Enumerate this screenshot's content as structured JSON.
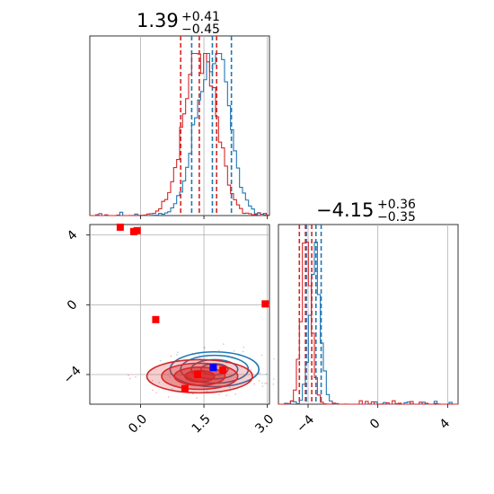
{
  "chart_data": {
    "type": "scatter",
    "kind": "corner plot",
    "grid": true,
    "colors": {
      "series_a": "#1f77b4",
      "series_b": "#d62728",
      "marker_red": "#ff0000",
      "marker_blue": "#0000ff"
    },
    "panels": {
      "hist_x": {
        "title": {
          "median": "1.39",
          "plus": "+0.41",
          "minus": "−0.45"
        },
        "xlim": [
          -1.2,
          3.05
        ],
        "ylim": [
          0,
          1
        ],
        "series": [
          {
            "color": "#1f77b4",
            "lines": [
              1.21,
              1.7,
              2.15
            ],
            "peak": 1.7,
            "sigma": 0.38
          },
          {
            "color": "#d62728",
            "lines": [
              0.95,
              1.39,
              1.8
            ],
            "peak": 1.4,
            "sigma": 0.38
          }
        ]
      },
      "hist_y": {
        "title": {
          "median": "−4.15",
          "plus": "+0.36",
          "minus": "−0.35"
        },
        "xlim": [
          -5.7,
          4.6
        ],
        "ylim": [
          0,
          1
        ],
        "xticks": [
          {
            "value": -4,
            "label": "−4"
          },
          {
            "value": 0,
            "label": "0"
          },
          {
            "value": 4,
            "label": "4"
          }
        ],
        "series": [
          {
            "color": "#1f77b4",
            "lines": [
              -4.1,
              -3.55,
              -3.25
            ],
            "peak": -3.6,
            "sigma": 0.3
          },
          {
            "color": "#d62728",
            "lines": [
              -4.5,
              -4.15,
              -3.79
            ],
            "peak": -4.1,
            "sigma": 0.3
          }
        ]
      },
      "scatter": {
        "xlim": [
          -1.2,
          3.05
        ],
        "ylim": [
          -5.7,
          4.6
        ],
        "xticks": [
          {
            "value": 0.0,
            "label": "0.0"
          },
          {
            "value": 1.5,
            "label": "1.5"
          },
          {
            "value": 3.0,
            "label": "3.0"
          }
        ],
        "yticks": [
          {
            "value": 4,
            "label": "4"
          },
          {
            "value": 0,
            "label": "0"
          },
          {
            "value": -4,
            "label": "−4"
          }
        ],
        "contours": [
          {
            "color": "#1f77b4",
            "center": [
              1.75,
              -3.7
            ],
            "rx": [
              0.32,
              0.55,
              0.8,
              1.05
            ],
            "ry": [
              0.32,
              0.55,
              0.8,
              1.0
            ],
            "filled": false
          },
          {
            "color": "#d62728",
            "center": [
              1.4,
              -4.1
            ],
            "rx": [
              0.35,
              0.6,
              0.9,
              1.25
            ],
            "ry": [
              0.32,
              0.52,
              0.75,
              0.95
            ],
            "filled": true
          }
        ],
        "markers_red": [
          [
            -0.48,
            4.45
          ],
          [
            -0.16,
            4.2
          ],
          [
            -0.08,
            4.25
          ],
          [
            0.36,
            -0.85
          ],
          [
            2.95,
            0.05
          ],
          [
            1.05,
            -4.8
          ],
          [
            1.35,
            -4.0
          ],
          [
            1.95,
            -3.75
          ]
        ],
        "markers_blue": [
          [
            1.72,
            -3.6
          ]
        ]
      }
    }
  }
}
